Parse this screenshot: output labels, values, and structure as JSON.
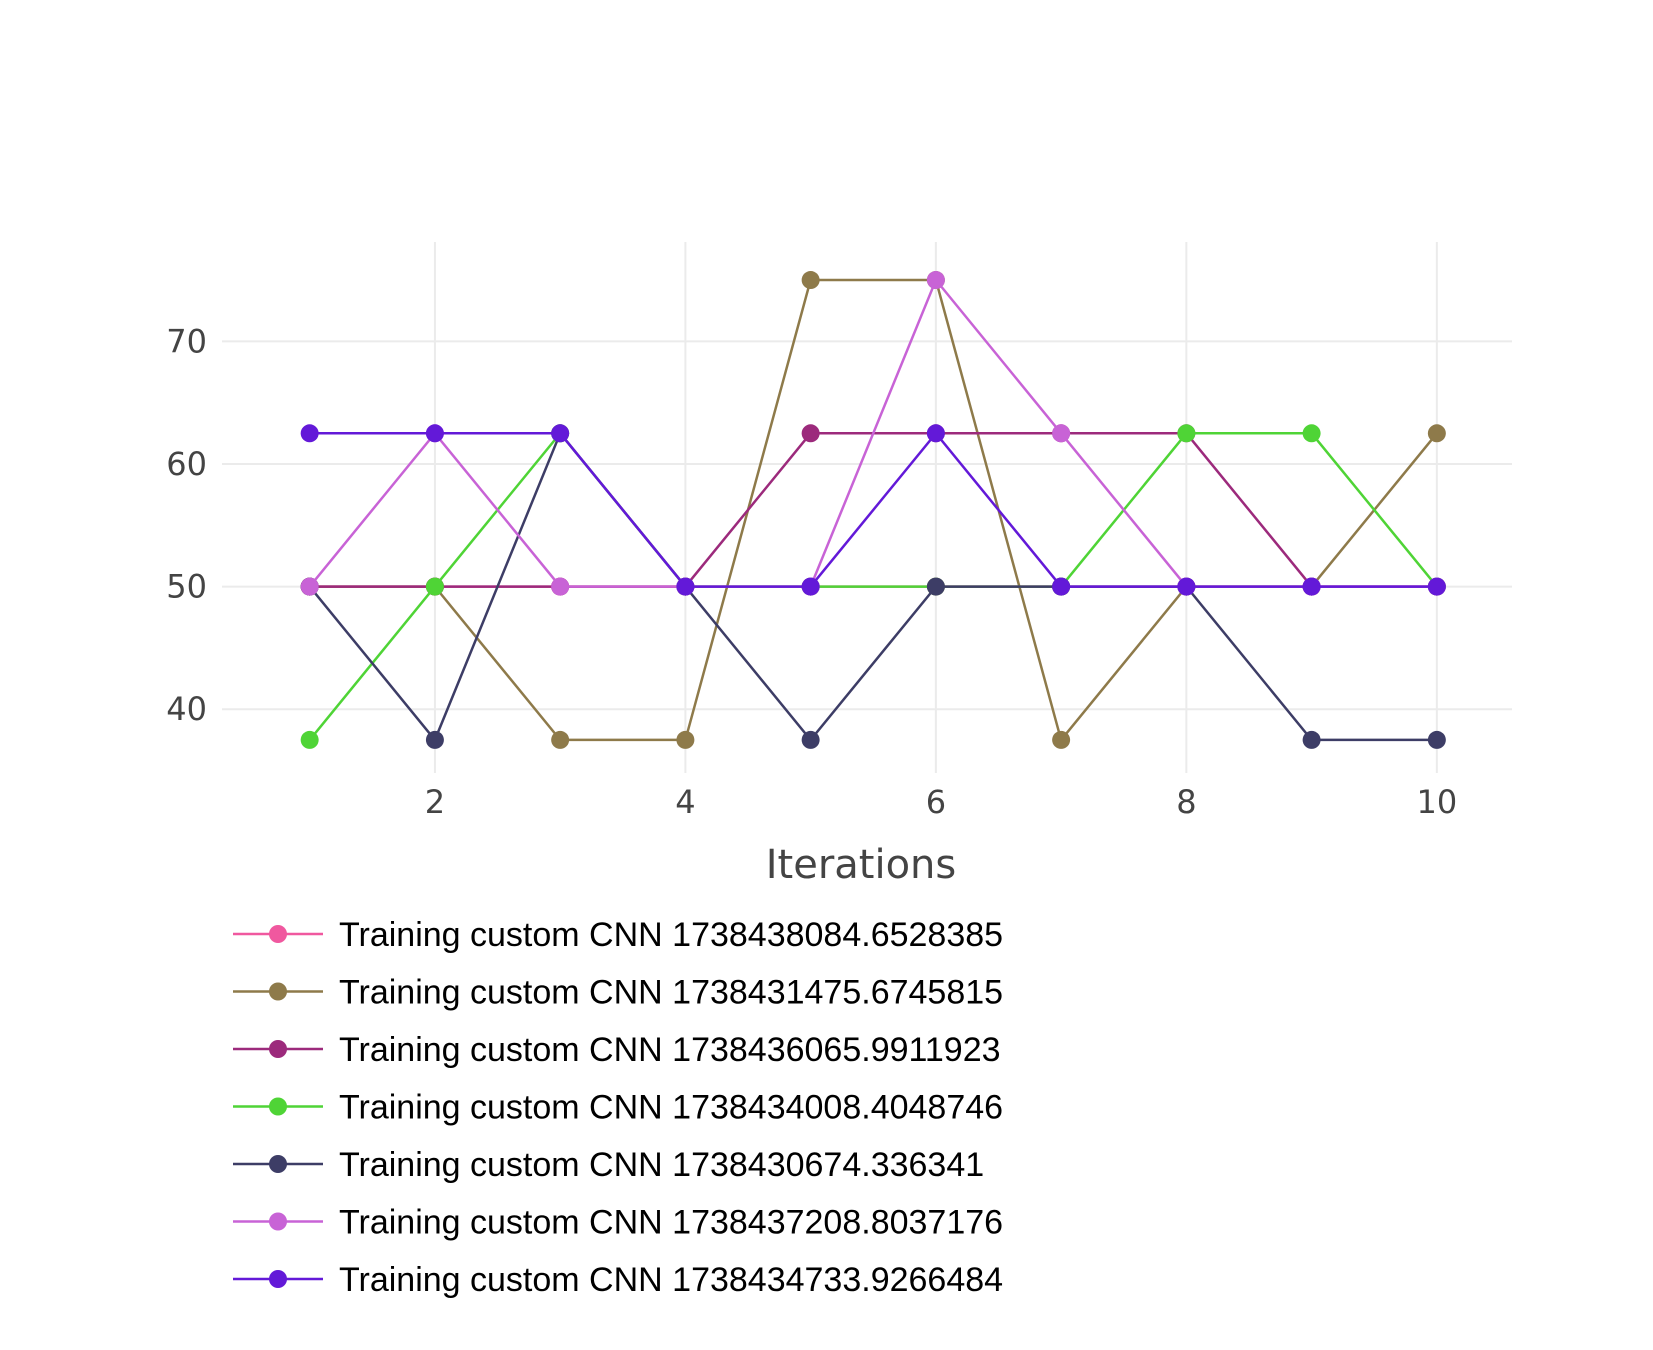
{
  "chart_data": {
    "type": "line",
    "title": "",
    "xlabel": "Iterations",
    "ylabel": "",
    "x": [
      1,
      2,
      3,
      4,
      5,
      6,
      7,
      8,
      9,
      10
    ],
    "xlim": [
      0.3,
      10.6
    ],
    "ylim": [
      34.8,
      78.1
    ],
    "xticks": [
      2,
      4,
      6,
      8,
      10
    ],
    "yticks": [
      40,
      50,
      60,
      70
    ],
    "grid": true,
    "legend": "bottom",
    "series": [
      {
        "name": "Training custom CNN 1738438084.6528385",
        "color": "#f0589f",
        "values": [
          50,
          50,
          50,
          50,
          50,
          50,
          50,
          50,
          50,
          50
        ]
      },
      {
        "name": "Training custom CNN 1738431475.6745815",
        "color": "#8e7a4a",
        "values": [
          50,
          50,
          37.5,
          37.5,
          75,
          75,
          37.5,
          50,
          50,
          62.5
        ]
      },
      {
        "name": "Training custom CNN 1738436065.9911923",
        "color": "#9c2a7c",
        "values": [
          50,
          50,
          50,
          50,
          62.5,
          62.5,
          62.5,
          62.5,
          50,
          50
        ]
      },
      {
        "name": "Training custom CNN 1738434008.4048746",
        "color": "#4fd436",
        "values": [
          37.5,
          50,
          62.5,
          50,
          50,
          50,
          50,
          62.5,
          62.5,
          50
        ]
      },
      {
        "name": "Training custom CNN 1738430674.336341",
        "color": "#3d3d66",
        "values": [
          50,
          37.5,
          62.5,
          50,
          37.5,
          50,
          50,
          50,
          37.5,
          37.5
        ]
      },
      {
        "name": "Training custom CNN 1738437208.8037176",
        "color": "#c863d6",
        "values": [
          50,
          62.5,
          50,
          50,
          50,
          75,
          62.5,
          50,
          50,
          50
        ]
      },
      {
        "name": "Training custom CNN 1738434733.9266484",
        "color": "#6319d8",
        "values": [
          62.5,
          62.5,
          62.5,
          50,
          50,
          62.5,
          50,
          50,
          50,
          50
        ]
      }
    ]
  }
}
